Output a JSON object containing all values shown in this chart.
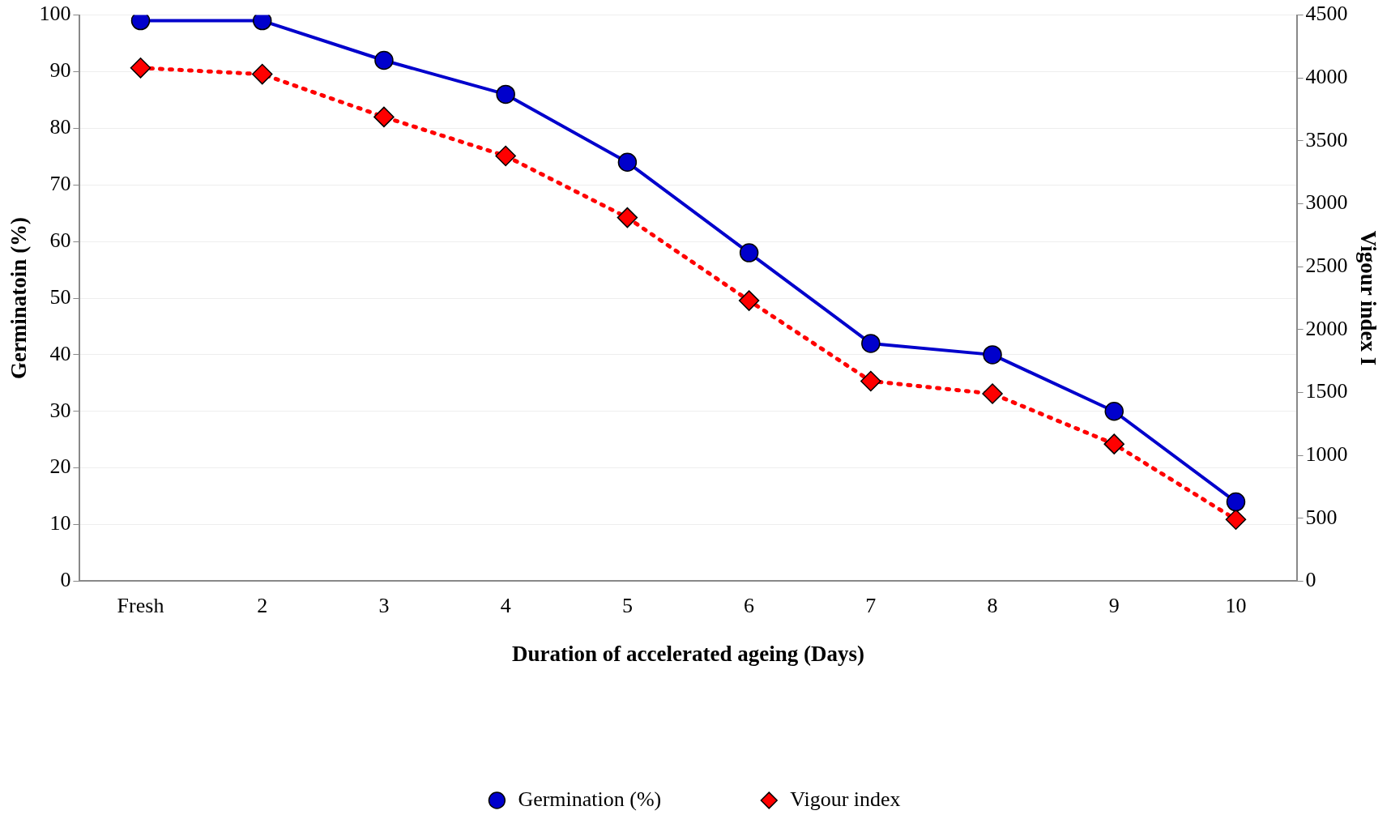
{
  "chart_data": {
    "type": "line",
    "xlabel": "Duration of accelerated ageing (Days)",
    "ylabel": "Germinatoin (%)",
    "y2label": "Vigour index I",
    "categories": [
      "Fresh",
      "2",
      "3",
      "4",
      "5",
      "6",
      "7",
      "8",
      "9",
      "10"
    ],
    "series": [
      {
        "name": "Germination (%)",
        "color": "#0000cc",
        "marker": "circle",
        "line_style": "solid",
        "values": [
          99,
          99,
          92,
          86,
          74,
          58,
          42,
          40,
          30,
          14
        ]
      },
      {
        "name": "Vigour index",
        "color": "#ff0000",
        "marker": "diamond",
        "line_style": "dotted",
        "axis": "y2",
        "values": [
          4080,
          4030,
          3690,
          3380,
          2890,
          2230,
          1590,
          1490,
          1090,
          490
        ]
      }
    ],
    "ylim": [
      0,
      100
    ],
    "yticks": [
      0,
      10,
      20,
      30,
      40,
      50,
      60,
      70,
      80,
      90,
      100
    ],
    "y2lim": [
      0,
      4500
    ],
    "y2ticks": [
      0,
      500,
      1000,
      1500,
      2000,
      2500,
      3000,
      3500,
      4000,
      4500
    ],
    "grid": "y",
    "legend": "bottom"
  }
}
